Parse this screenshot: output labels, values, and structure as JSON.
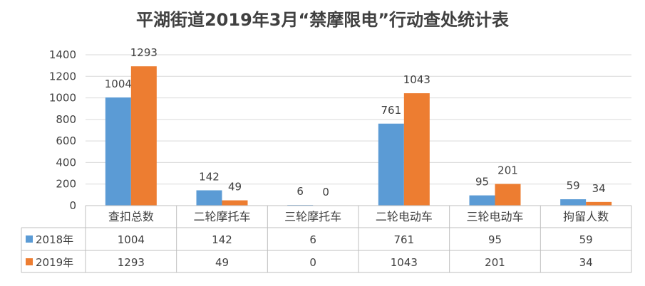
{
  "chart_data": {
    "type": "bar",
    "title": "平湖街道2019年3月“禁摩限电”行动查处统计表",
    "categories": [
      "查扣总数",
      "二轮摩托车",
      "三轮摩托车",
      "二轮电动车",
      "三轮电动车",
      "拘留人数"
    ],
    "series": [
      {
        "name": "2018年",
        "color": "#5b9bd5",
        "values": [
          1004,
          142,
          6,
          761,
          95,
          59
        ]
      },
      {
        "name": "2019年",
        "color": "#ed7d31",
        "values": [
          1293,
          49,
          0,
          1043,
          201,
          34
        ]
      }
    ],
    "ylim": [
      0,
      1400
    ],
    "yticks": [
      0,
      200,
      400,
      600,
      800,
      1000,
      1200,
      1400
    ],
    "grid": true,
    "legend": "data-table"
  }
}
